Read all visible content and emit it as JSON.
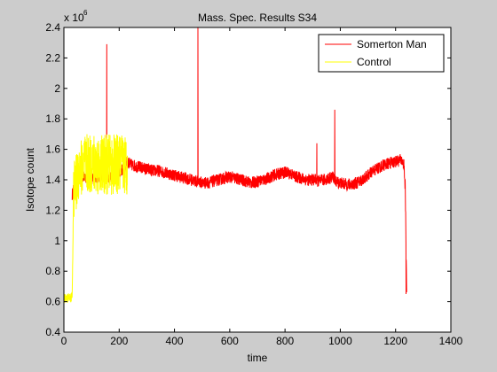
{
  "chart_data": {
    "type": "line",
    "title": "Mass. Spec. Results S34",
    "xlabel": "time",
    "ylabel": "Isotope count",
    "y_multiplier_label": "x 10",
    "y_multiplier_exponent": "6",
    "xlim": [
      0,
      1400
    ],
    "ylim": [
      0.4,
      2.4
    ],
    "x_ticks": [
      0,
      200,
      400,
      600,
      800,
      1000,
      1200,
      1400
    ],
    "x_tick_labels": [
      "0",
      "200",
      "400",
      "600",
      "800",
      "1000",
      "1200",
      "1400"
    ],
    "y_ticks": [
      0.4,
      0.6,
      0.8,
      1.0,
      1.2,
      1.4,
      1.6,
      1.8,
      2.0,
      2.2,
      2.4
    ],
    "y_tick_labels": [
      "0.4",
      "0.6",
      "0.8",
      "1",
      "1.2",
      "1.4",
      "1.6",
      "1.8",
      "2",
      "2.2",
      "2.4"
    ],
    "grid": false,
    "legend_position": "top-right",
    "series": [
      {
        "name": "Somerton Man",
        "color": "#ff0000",
        "x": [
          30,
          40,
          50,
          60,
          80,
          100,
          120,
          140,
          155,
          160,
          180,
          200,
          220,
          230,
          240,
          260,
          280,
          300,
          320,
          340,
          360,
          380,
          400,
          420,
          440,
          460,
          480,
          485,
          490,
          500,
          520,
          540,
          560,
          580,
          600,
          620,
          640,
          660,
          680,
          700,
          720,
          740,
          760,
          780,
          800,
          820,
          840,
          860,
          880,
          900,
          915,
          920,
          940,
          960,
          975,
          980,
          1000,
          1020,
          1040,
          1060,
          1080,
          1100,
          1120,
          1140,
          1160,
          1180,
          1200,
          1220,
          1230,
          1235,
          1240
        ],
        "y": [
          1.3,
          1.38,
          1.4,
          1.41,
          1.42,
          1.41,
          1.42,
          1.43,
          1.44,
          1.42,
          1.43,
          1.45,
          1.48,
          1.52,
          1.5,
          1.49,
          1.48,
          1.47,
          1.46,
          1.46,
          1.45,
          1.44,
          1.43,
          1.42,
          1.41,
          1.4,
          1.39,
          1.39,
          1.39,
          1.38,
          1.38,
          1.39,
          1.4,
          1.41,
          1.42,
          1.41,
          1.4,
          1.39,
          1.38,
          1.39,
          1.4,
          1.41,
          1.43,
          1.44,
          1.45,
          1.44,
          1.42,
          1.41,
          1.4,
          1.4,
          1.4,
          1.39,
          1.4,
          1.41,
          1.42,
          1.39,
          1.38,
          1.37,
          1.37,
          1.38,
          1.4,
          1.43,
          1.46,
          1.48,
          1.5,
          1.51,
          1.52,
          1.53,
          1.5,
          1.35,
          0.68
        ],
        "noise": 0.08,
        "spikes": [
          {
            "x": 155,
            "y": 2.29
          },
          {
            "x": 485,
            "y": 2.4
          },
          {
            "x": 915,
            "y": 1.64
          },
          {
            "x": 980,
            "y": 1.86
          },
          {
            "x": 1238,
            "y": 0.65
          }
        ]
      },
      {
        "name": "Control",
        "color": "#ffff00",
        "x": [
          0,
          10,
          20,
          25,
          30,
          35,
          40,
          45,
          50,
          60,
          80,
          100,
          120,
          140,
          160,
          180,
          200,
          220,
          230
        ],
        "y": [
          0.62,
          0.62,
          0.63,
          0.62,
          0.65,
          1.3,
          1.35,
          1.38,
          1.45,
          1.48,
          1.5,
          1.5,
          1.5,
          1.5,
          1.5,
          1.5,
          1.5,
          1.5,
          1.5
        ],
        "noise": 0.4
      }
    ]
  }
}
